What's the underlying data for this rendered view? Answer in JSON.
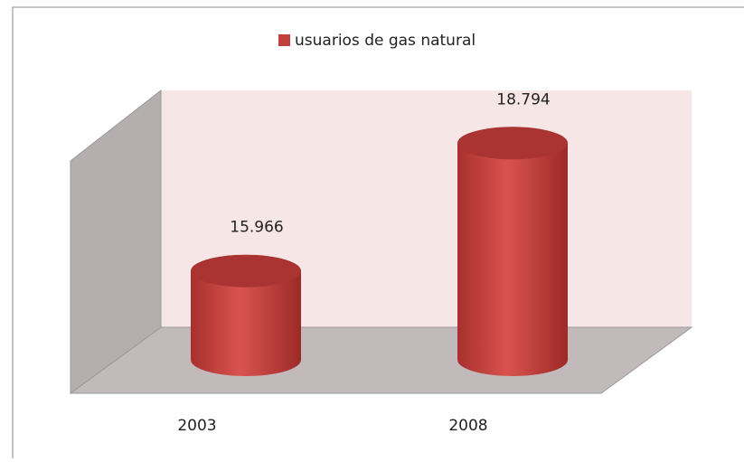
{
  "chart_data": {
    "type": "bar3d",
    "categories": [
      "2003",
      "2008"
    ],
    "series": [
      {
        "name": "usuarios de gas natural",
        "color": "#c0403e",
        "values": [
          15966,
          18794
        ],
        "value_labels": [
          "15.966",
          "18.794"
        ]
      }
    ],
    "ylim": [
      14000,
      20000
    ]
  }
}
